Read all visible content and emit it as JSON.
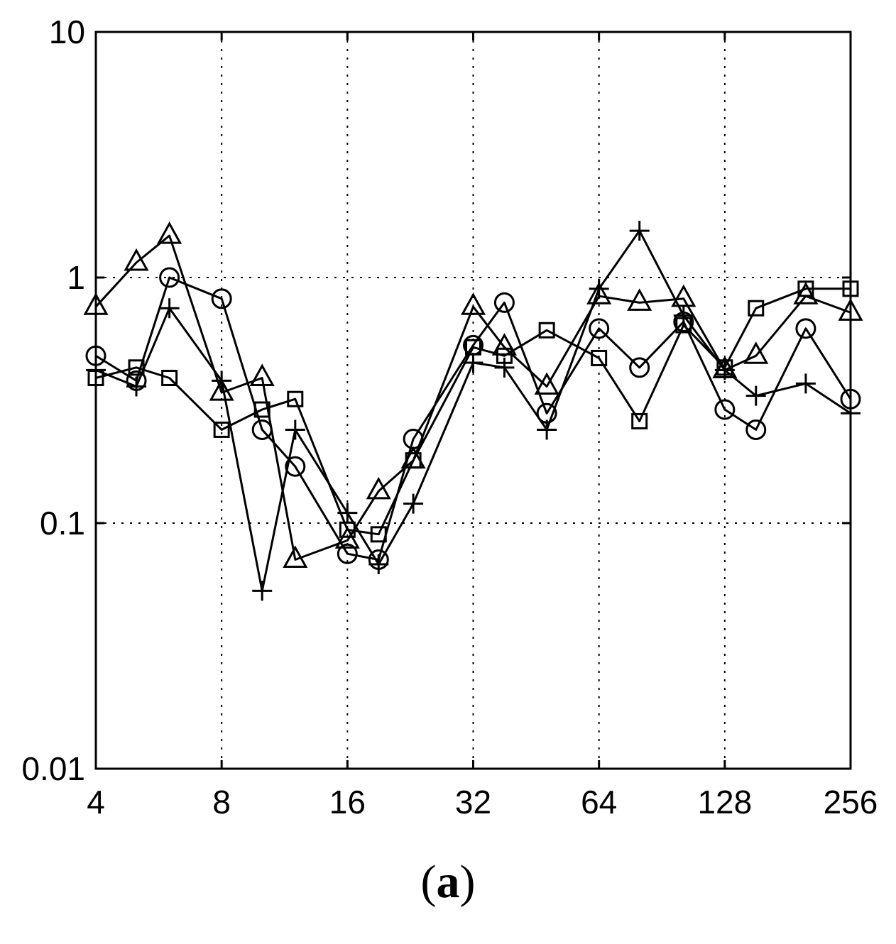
{
  "chart_data": {
    "type": "line",
    "xscale": "log2",
    "yscale": "log10",
    "xlim": [
      4,
      256
    ],
    "ylim": [
      0.01,
      10
    ],
    "grid": true,
    "x_ticks": [
      "4",
      "8",
      "16",
      "32",
      "64",
      "128",
      "256"
    ],
    "y_ticks": [
      "0.01",
      "0.1",
      "1",
      "10"
    ],
    "x_tick_values": [
      4,
      8,
      16,
      32,
      64,
      128,
      256
    ],
    "y_tick_values": [
      0.01,
      0.1,
      1,
      10
    ],
    "x": [
      4,
      5,
      6,
      8,
      10,
      12,
      16,
      19,
      23,
      32,
      38,
      48,
      64,
      80,
      102,
      128,
      152,
      200,
      256
    ],
    "series": [
      {
        "marker": "triangle",
        "values": [
          0.76,
          1.15,
          1.48,
          0.34,
          0.39,
          0.071,
          0.085,
          0.135,
          0.18,
          0.76,
          0.52,
          0.36,
          0.84,
          0.79,
          0.82,
          0.42,
          0.48,
          0.84,
          0.72
        ]
      },
      {
        "marker": "circle",
        "values": [
          0.48,
          0.38,
          1.0,
          0.82,
          0.24,
          0.17,
          0.075,
          0.071,
          0.22,
          0.53,
          0.79,
          0.28,
          0.62,
          0.43,
          0.66,
          0.29,
          0.24,
          0.62,
          0.32
        ]
      },
      {
        "marker": "plus",
        "values": [
          0.42,
          0.36,
          0.75,
          0.38,
          0.053,
          0.24,
          0.11,
          0.068,
          0.12,
          0.45,
          0.43,
          0.24,
          0.9,
          1.55,
          0.7,
          0.42,
          0.33,
          0.37,
          0.28
        ]
      },
      {
        "marker": "square",
        "values": [
          0.39,
          0.43,
          0.39,
          0.24,
          0.29,
          0.32,
          0.094,
          0.09,
          0.18,
          0.52,
          0.48,
          0.61,
          0.47,
          0.26,
          0.64,
          0.43,
          0.75,
          0.9,
          0.9
        ]
      }
    ]
  },
  "caption": {
    "open": "(",
    "letter": "a",
    "close": ")"
  }
}
